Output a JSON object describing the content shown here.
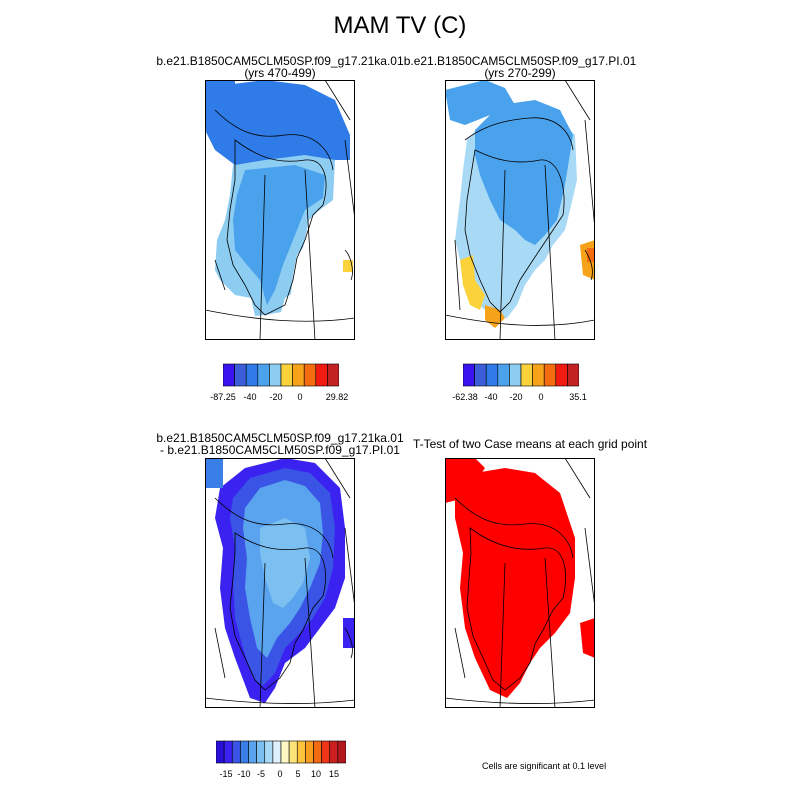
{
  "page": {
    "title": "MAM TV (C)",
    "note": "Cells are significant at 0.1 level"
  },
  "panels": [
    {
      "title_line1": "b.e21.B1850CAM5CLM50SP.f09_g17.21ka.01",
      "title_line2": "(yrs 470-499)"
    },
    {
      "title_line1": "b.e21.B1850CAM5CLM50SP.f09_g17.PI.01",
      "title_line2": "(yrs 270-299)"
    },
    {
      "title_line1": "b.e21.B1850CAM5CLM50SP.f09_g17.21ka.01",
      "title_line2": "- b.e21.B1850CAM5CLM50SP.f09_g17.PI.01"
    },
    {
      "title_line1": "T-Test of two Case means at each grid point",
      "title_line2": ""
    }
  ],
  "colorbars": [
    {
      "colors": [
        "#3a14f0",
        "#3c5fd9",
        "#2f7be8",
        "#4aa2ec",
        "#8ecdf2",
        "#fcd23a",
        "#f7a31a",
        "#f46c0f",
        "#f21b12",
        "#c22222"
      ],
      "labels": [
        "-87.25",
        "-40",
        "-20",
        "0",
        "29.82"
      ]
    },
    {
      "colors": [
        "#3a14f0",
        "#3c5fd9",
        "#2f7be8",
        "#4aa2ec",
        "#8ecdf2",
        "#fcd23a",
        "#f7a31a",
        "#f46c0f",
        "#f21b12",
        "#c22222"
      ],
      "labels": [
        "-62.38",
        "-40",
        "-20",
        "0",
        "35.1"
      ]
    },
    {
      "colors": [
        "#2a0fd6",
        "#3a22f0",
        "#3a55e6",
        "#3a7fe8",
        "#5aa3ee",
        "#7cc0f2",
        "#a9daf5",
        "#dff2fb",
        "#fff7c4",
        "#fde57a",
        "#fcc43a",
        "#f99e1e",
        "#f46a12",
        "#ee3515",
        "#cc1f1f",
        "#b2191d"
      ],
      "labels": [
        "-15",
        "-10",
        "-5",
        "0",
        "5",
        "10",
        "15"
      ]
    }
  ],
  "chart_data": [
    {
      "type": "heatmap",
      "title": "b.e21.B1850CAM5CLM50SP.f09_g17.21ka.01 (yrs 470-499)",
      "colorbar_labels": [
        -87.25,
        -40,
        -20,
        0,
        29.82
      ],
      "region_values": {
        "north_coast": -45,
        "interior": -40,
        "south_margin": -20
      }
    },
    {
      "type": "heatmap",
      "title": "b.e21.B1850CAM5CLM50SP.f09_g17.PI.01 (yrs 270-299)",
      "colorbar_labels": [
        -62.38,
        -40,
        -20,
        0,
        35.1
      ],
      "region_values": {
        "north": -25,
        "interior": -20,
        "south_margin": -10,
        "southwest_coast": 5,
        "southern_tip": 15
      }
    },
    {
      "type": "heatmap",
      "title": "b.e21.B1850CAM5CLM50SP.f09_g17.21ka.01 - b.e21.B1850CAM5CLM50SP.f09_g17.PI.01",
      "colorbar_labels": [
        -15,
        -10,
        -5,
        0,
        5,
        10,
        15
      ],
      "region_values": {
        "interior": -5,
        "inner_ring": -8,
        "margins": -14
      }
    },
    {
      "type": "heatmap",
      "title": "T-Test of two Case means at each grid point",
      "significant_color": "#ff0000",
      "significance_level": 0.1
    }
  ]
}
